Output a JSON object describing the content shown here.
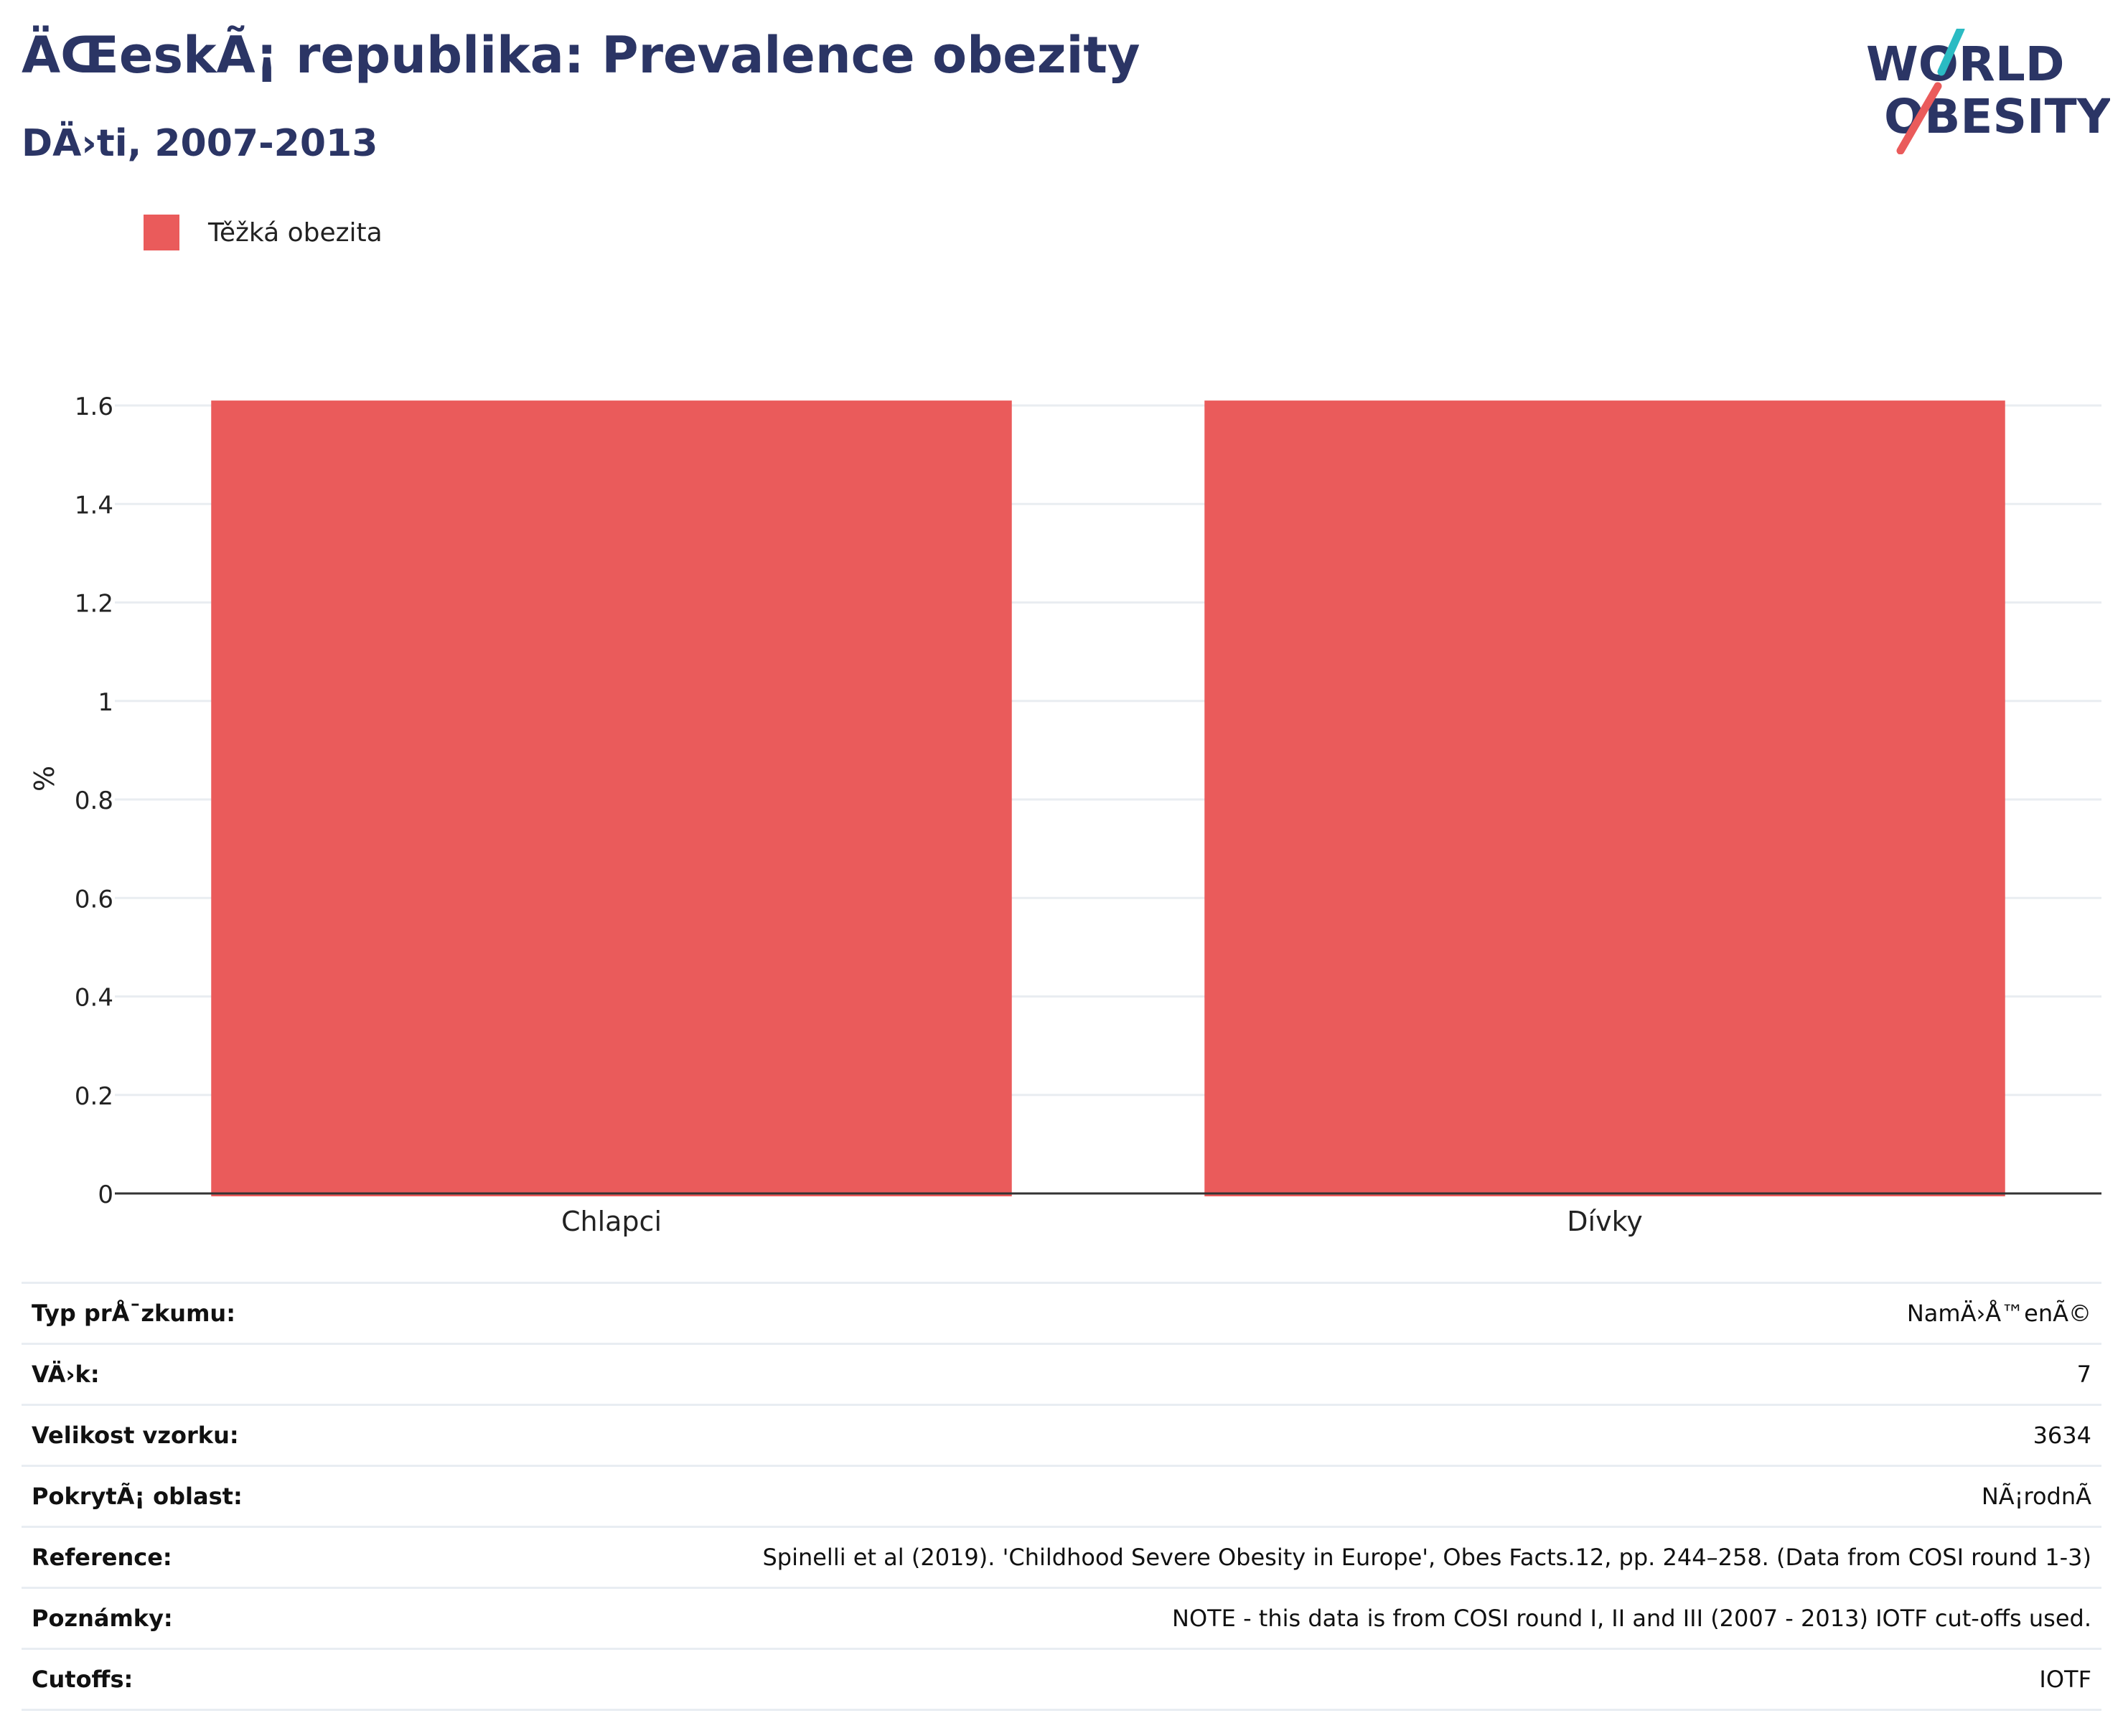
{
  "header": {
    "title": "ÄŒeskÃ¡ republika: Prevalence obezity",
    "subtitle": "DÄ›ti, 2007-2013"
  },
  "logo": {
    "line1": "WORLD",
    "line2": "OBESITY",
    "accent_colors": [
      "#2bbbc3",
      "#ea5b5b"
    ]
  },
  "chart_data": {
    "type": "bar",
    "categories": [
      "Chlapci",
      "Dívky"
    ],
    "series": [
      {
        "name": "Těžká obezita",
        "values": [
          1.61,
          1.61
        ],
        "color": "#ea5b5b"
      }
    ],
    "title": "ÄŒeskÃ¡ republika: Prevalence obezity",
    "subtitle": "DÄ›ti, 2007-2013",
    "xlabel": "",
    "ylabel": "%",
    "ylim": [
      0,
      1.6
    ],
    "yticks": [
      0,
      0.2,
      0.4,
      0.6,
      0.8,
      1,
      1.2,
      1.4,
      1.6
    ],
    "ytick_labels": [
      "0",
      "0.2",
      "0.4",
      "0.6",
      "0.8",
      "1",
      "1.2",
      "1.4",
      "1.6"
    ],
    "grid": true,
    "legend": "top-left"
  },
  "info": [
    {
      "label": "Typ prÅ¯zkumu:",
      "value": "NamÄ›Å™enÃ©"
    },
    {
      "label": "VÄ›k:",
      "value": "7"
    },
    {
      "label": "Velikost vzorku:",
      "value": "3634"
    },
    {
      "label": "PokrytÃ¡ oblast:",
      "value": "NÃ¡rodnÃ"
    },
    {
      "label": "Reference:",
      "value": "Spinelli et al (2019). 'Childhood Severe Obesity in Europe', Obes Facts.12, pp. 244–258. (Data from COSI round 1-3)"
    },
    {
      "label": "Poznámky:",
      "value": "NOTE - this data is from COSI round I, II and III (2007 - 2013) IOTF cut-offs used."
    },
    {
      "label": "Cutoffs:",
      "value": "IOTF"
    }
  ]
}
